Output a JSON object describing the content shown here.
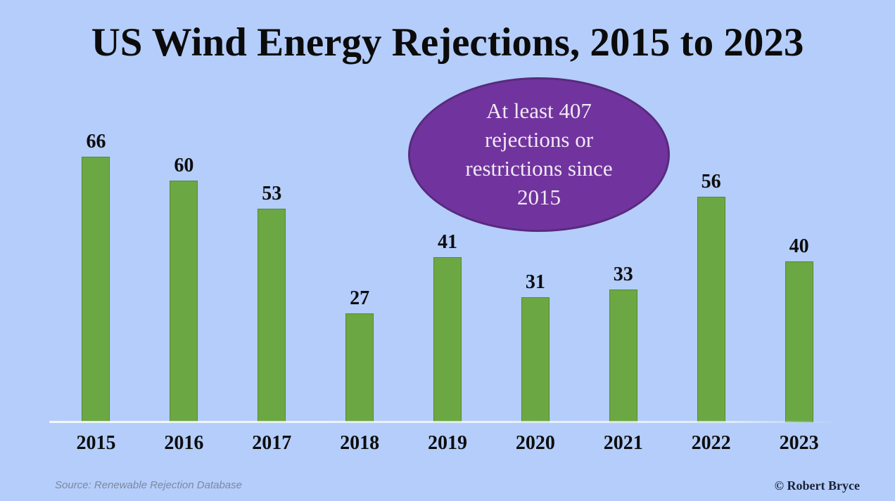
{
  "title": "US Wind Energy Rejections, 2015 to 2023",
  "chart_data": {
    "type": "bar",
    "title": "US Wind Energy Rejections, 2015 to 2023",
    "categories": [
      "2015",
      "2016",
      "2017",
      "2018",
      "2019",
      "2020",
      "2021",
      "2022",
      "2023"
    ],
    "values": [
      66,
      60,
      53,
      27,
      41,
      31,
      33,
      56,
      40
    ],
    "xlabel": "",
    "ylabel": "",
    "ylim": [
      0,
      66
    ],
    "grid": false,
    "legend": false,
    "bar_color": "#6ba844",
    "background_color": "#b4cdfa",
    "value_labels_shown": true,
    "annotation": "At least 407\nrejections or\nrestrictions since\n2015"
  },
  "annotation": {
    "text": "At least 407\nrejections or\nrestrictions since\n2015",
    "bg_color": "#71349e",
    "text_color": "#f2e9f6"
  },
  "footer": {
    "source": "Source: Renewable Rejection Database",
    "credit": "© Robert Bryce"
  }
}
